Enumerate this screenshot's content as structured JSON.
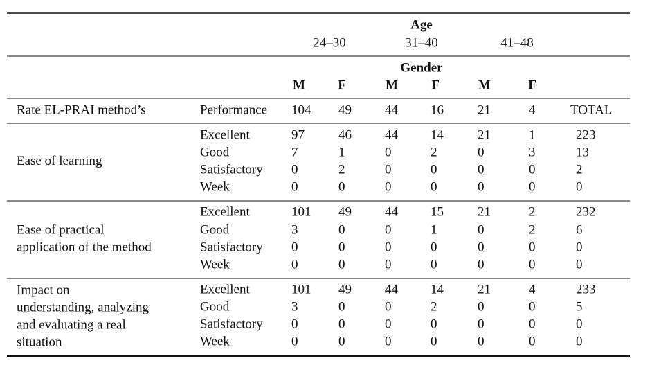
{
  "header": {
    "age_label": "Age",
    "age_groups": [
      "24–30",
      "31–40",
      "41–48"
    ],
    "gender_label": "Gender",
    "genders": [
      "M",
      "F",
      "M",
      "F",
      "M",
      "F"
    ]
  },
  "performance_row": {
    "label": "Rate EL-PRAI method’s",
    "sublabel": "Performance",
    "values": [
      104,
      49,
      44,
      16,
      21,
      4
    ],
    "total_label": "TOTAL"
  },
  "groups": [
    {
      "label_lines": [
        "Ease of learning"
      ],
      "rows": [
        {
          "rating": "Excellent",
          "values": [
            97,
            46,
            44,
            14,
            21,
            1
          ],
          "total": 223
        },
        {
          "rating": "Good",
          "values": [
            7,
            1,
            0,
            2,
            0,
            3
          ],
          "total": 13
        },
        {
          "rating": "Satisfactory",
          "values": [
            0,
            2,
            0,
            0,
            0,
            0
          ],
          "total": 2
        },
        {
          "rating": "Week",
          "values": [
            0,
            0,
            0,
            0,
            0,
            0
          ],
          "total": 0
        }
      ]
    },
    {
      "label_lines": [
        "Ease of practical",
        "application of the method"
      ],
      "rows": [
        {
          "rating": "Excellent",
          "values": [
            101,
            49,
            44,
            15,
            21,
            2
          ],
          "total": 232
        },
        {
          "rating": "Good",
          "values": [
            3,
            0,
            0,
            1,
            0,
            2
          ],
          "total": 6
        },
        {
          "rating": "Satisfactory",
          "values": [
            0,
            0,
            0,
            0,
            0,
            0
          ],
          "total": 0
        },
        {
          "rating": "Week",
          "values": [
            0,
            0,
            0,
            0,
            0,
            0
          ],
          "total": 0
        }
      ]
    },
    {
      "label_lines": [
        "Impact on",
        "understanding, analyzing",
        "and evaluating a real",
        "situation"
      ],
      "rows": [
        {
          "rating": "Excellent",
          "values": [
            101,
            49,
            44,
            14,
            21,
            4
          ],
          "total": 233
        },
        {
          "rating": "Good",
          "values": [
            3,
            0,
            0,
            2,
            0,
            0
          ],
          "total": 5
        },
        {
          "rating": "Satisfactory",
          "values": [
            0,
            0,
            0,
            0,
            0,
            0
          ],
          "total": 0
        },
        {
          "rating": "Week",
          "values": [
            0,
            0,
            0,
            0,
            0,
            0
          ],
          "total": 0
        }
      ]
    }
  ]
}
